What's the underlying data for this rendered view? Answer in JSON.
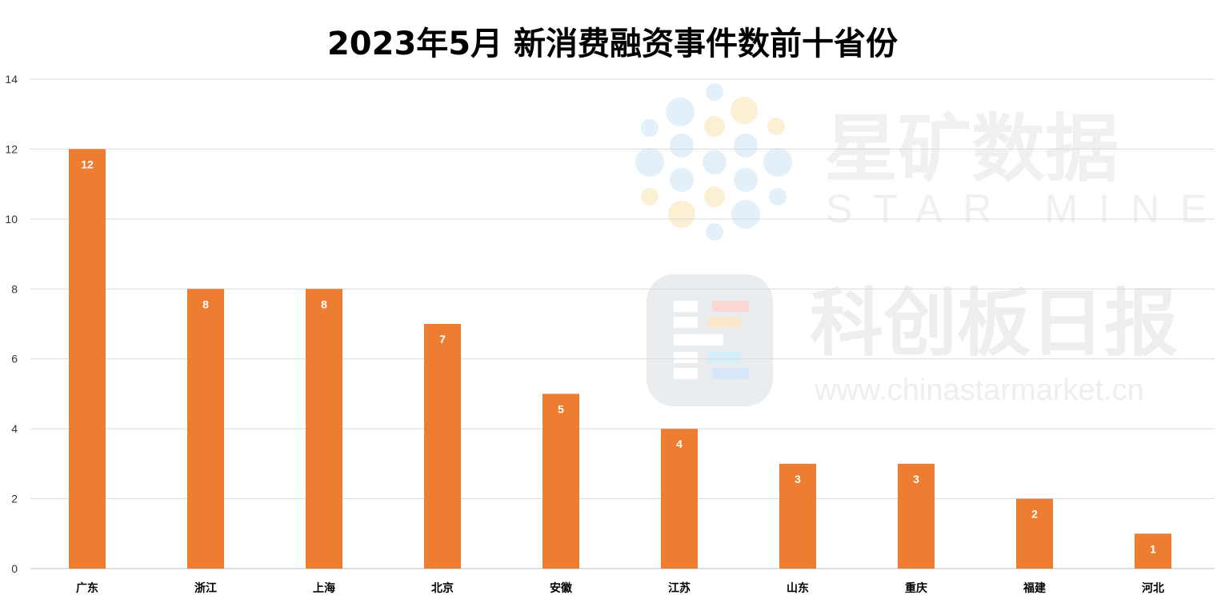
{
  "chart_data": {
    "type": "bar",
    "title": "2023年5月 新消费融资事件数前十省份",
    "xlabel": "",
    "ylabel": "",
    "categories": [
      "广东",
      "浙江",
      "上海",
      "北京",
      "安徽",
      "江苏",
      "山东",
      "重庆",
      "福建",
      "河北"
    ],
    "values": [
      12,
      8,
      8,
      7,
      5,
      4,
      3,
      3,
      2,
      1
    ],
    "ylim": [
      0,
      14
    ],
    "yticks": [
      0,
      2,
      4,
      6,
      8,
      10,
      12,
      14
    ],
    "grid": true,
    "data_labels": true,
    "bar_color": "#ED7D31"
  },
  "watermark": {
    "top_cn": "星矿数据",
    "top_en": "STAR MINE",
    "bottom_cn": "科创板日报",
    "bottom_url": "www.chinastarmarket.cn"
  }
}
